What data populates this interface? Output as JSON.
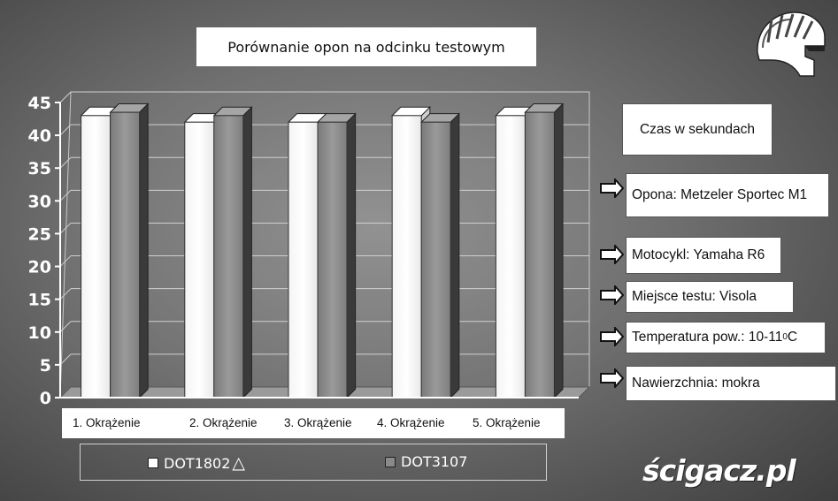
{
  "chart_data": {
    "type": "bar",
    "title": "Porównanie opon na odcinku testowym",
    "categories": [
      "1.   Okrążenie",
      "2. Okrążenie",
      "3. Okrążenie",
      "4. Okrążenie",
      "5. Okrążenie"
    ],
    "series": [
      {
        "name": "DOT1802",
        "values": [
          43,
          42,
          42,
          43,
          43
        ],
        "color": "#ffffff"
      },
      {
        "name": "DOT3107",
        "values": [
          43.5,
          43,
          42,
          42,
          43.5
        ],
        "color": "#8a8a8a"
      }
    ],
    "yticks": [
      "0",
      "5",
      "10",
      "15",
      "20",
      "25",
      "30",
      "35",
      "40",
      "45"
    ],
    "ylim": [
      0,
      45
    ],
    "grid": true,
    "legend_position": "bottom"
  },
  "units_label": "Czas w sekundach",
  "info": {
    "tire": "Opona: Metzeler Sportec M1",
    "bike": "Motocykl: Yamaha R6",
    "location": "Miejsce testu: Visola",
    "temperature_prefix": "Temperatura pow.: 10-11",
    "temperature_sup": "0",
    "temperature_suffix": "C",
    "surface": "Nawierzchnia: mokra"
  },
  "legend_triangle": "△",
  "watermark": "ścigacz.pl",
  "icons": {
    "arrow": "arrow-right-icon",
    "logo": "helmet-logo-icon"
  }
}
